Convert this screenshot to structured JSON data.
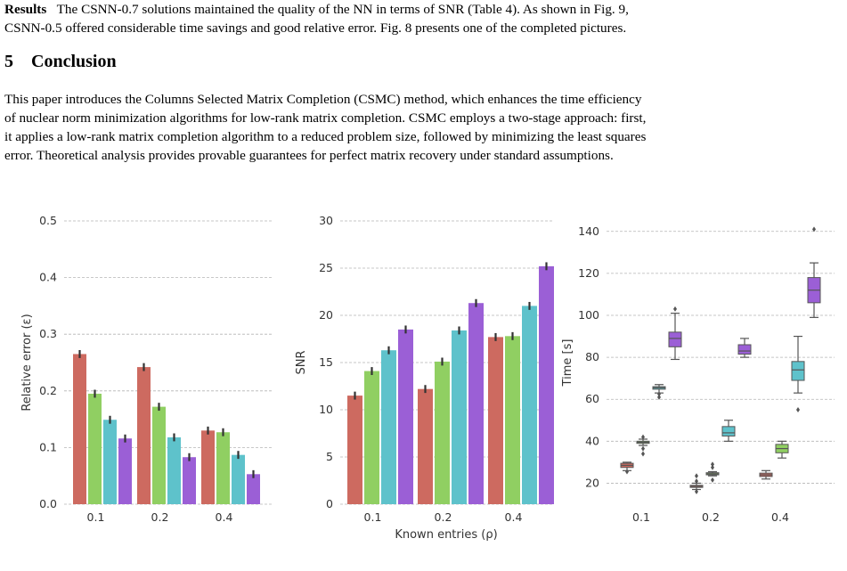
{
  "results": {
    "lead": "Results",
    "text_line1": "The CSNN-0.7 solutions maintained the quality of the NN in terms of SNR (Table 4). As shown in Fig. 9,",
    "text_line2": "CSNN-0.5 offered considerable time savings and good relative error. Fig. 8 presents one of the completed pictures."
  },
  "section": {
    "number": "5",
    "title": "Conclusion"
  },
  "conclusion": {
    "line1": "This paper introduces the Columns Selected Matrix Completion (CSMC) method, which enhances the time efficiency",
    "line2": "of nuclear norm minimization algorithms for low-rank matrix completion. CSMC employs a two-stage approach: first,",
    "line3": "it applies a low-rank matrix completion algorithm to a reduced problem size, followed by minimizing the least squares",
    "line4": "error. Theoretical analysis provides provable guarantees for perfect matrix recovery under standard assumptions."
  },
  "colors": {
    "c1": "#cd6a60",
    "c2": "#90cf62",
    "c3": "#5ec2cb",
    "c4": "#9b5fd6"
  },
  "chart_data": [
    {
      "type": "bar",
      "categories": [
        "0.1",
        "0.2",
        "0.4"
      ],
      "ylabel": "Relative error (ε)",
      "xlabel": "",
      "ylim": [
        0,
        0.5
      ],
      "yticks": [
        "0.0",
        "0.1",
        "0.2",
        "0.3",
        "0.4",
        "0.5"
      ],
      "series": [
        {
          "values": [
            0.265,
            0.242,
            0.13
          ]
        },
        {
          "values": [
            0.195,
            0.172,
            0.127
          ]
        },
        {
          "values": [
            0.149,
            0.118,
            0.087
          ]
        },
        {
          "values": [
            0.116,
            0.083,
            0.053
          ]
        }
      ]
    },
    {
      "type": "bar",
      "categories": [
        "0.1",
        "0.2",
        "0.4"
      ],
      "ylabel": "SNR",
      "xlabel": "Known entries (ρ)",
      "ylim": [
        0,
        30
      ],
      "yticks": [
        "0",
        "5",
        "10",
        "15",
        "20",
        "25",
        "30"
      ],
      "series": [
        {
          "values": [
            11.5,
            12.2,
            17.7
          ]
        },
        {
          "values": [
            14.1,
            15.1,
            17.8
          ]
        },
        {
          "values": [
            16.3,
            18.4,
            21.0
          ]
        },
        {
          "values": [
            18.5,
            21.3,
            25.2
          ]
        }
      ]
    },
    {
      "type": "box",
      "categories": [
        "0.1",
        "0.2",
        "0.4"
      ],
      "ylabel": "Time [s]",
      "xlabel": "",
      "ylim": [
        10,
        145
      ],
      "yticks": [
        "20",
        "40",
        "60",
        "80",
        "100",
        "120",
        "140"
      ],
      "series": [
        {
          "boxes": [
            {
              "min": 26,
              "q1": 27.5,
              "median": 28.5,
              "q3": 29.5,
              "max": 30,
              "outliers": [
                25.5
              ]
            },
            {
              "min": 17,
              "q1": 18,
              "median": 18.5,
              "q3": 19,
              "max": 20,
              "outliers": [
                16,
                21,
                23.5
              ]
            },
            {
              "min": 22,
              "q1": 23.2,
              "median": 24,
              "q3": 24.8,
              "max": 26,
              "outliers": []
            }
          ]
        },
        {
          "boxes": [
            {
              "min": 38,
              "q1": 39,
              "median": 39.5,
              "q3": 40,
              "max": 41,
              "outliers": [
                34,
                36.5,
                42
              ]
            },
            {
              "min": 23.5,
              "q1": 24,
              "median": 24.5,
              "q3": 25,
              "max": 25.5,
              "outliers": [
                21.5,
                27.5,
                29
              ]
            },
            {
              "min": 32,
              "q1": 34.5,
              "median": 36.5,
              "q3": 38.5,
              "max": 40,
              "outliers": []
            }
          ]
        },
        {
          "boxes": [
            {
              "min": 63,
              "q1": 64.8,
              "median": 65.5,
              "q3": 66,
              "max": 67,
              "outliers": [
                61,
                62.5
              ]
            },
            {
              "min": 40,
              "q1": 42.5,
              "median": 44,
              "q3": 47,
              "max": 50,
              "outliers": []
            },
            {
              "min": 63,
              "q1": 69,
              "median": 74,
              "q3": 78,
              "max": 90,
              "outliers": [
                55
              ]
            }
          ]
        },
        {
          "boxes": [
            {
              "min": 79,
              "q1": 85,
              "median": 89,
              "q3": 92,
              "max": 101,
              "outliers": [
                103
              ]
            },
            {
              "min": 80,
              "q1": 81.5,
              "median": 83,
              "q3": 86,
              "max": 89,
              "outliers": []
            },
            {
              "min": 99,
              "q1": 106,
              "median": 112,
              "q3": 118,
              "max": 125,
              "outliers": [
                141
              ]
            }
          ]
        }
      ]
    }
  ]
}
